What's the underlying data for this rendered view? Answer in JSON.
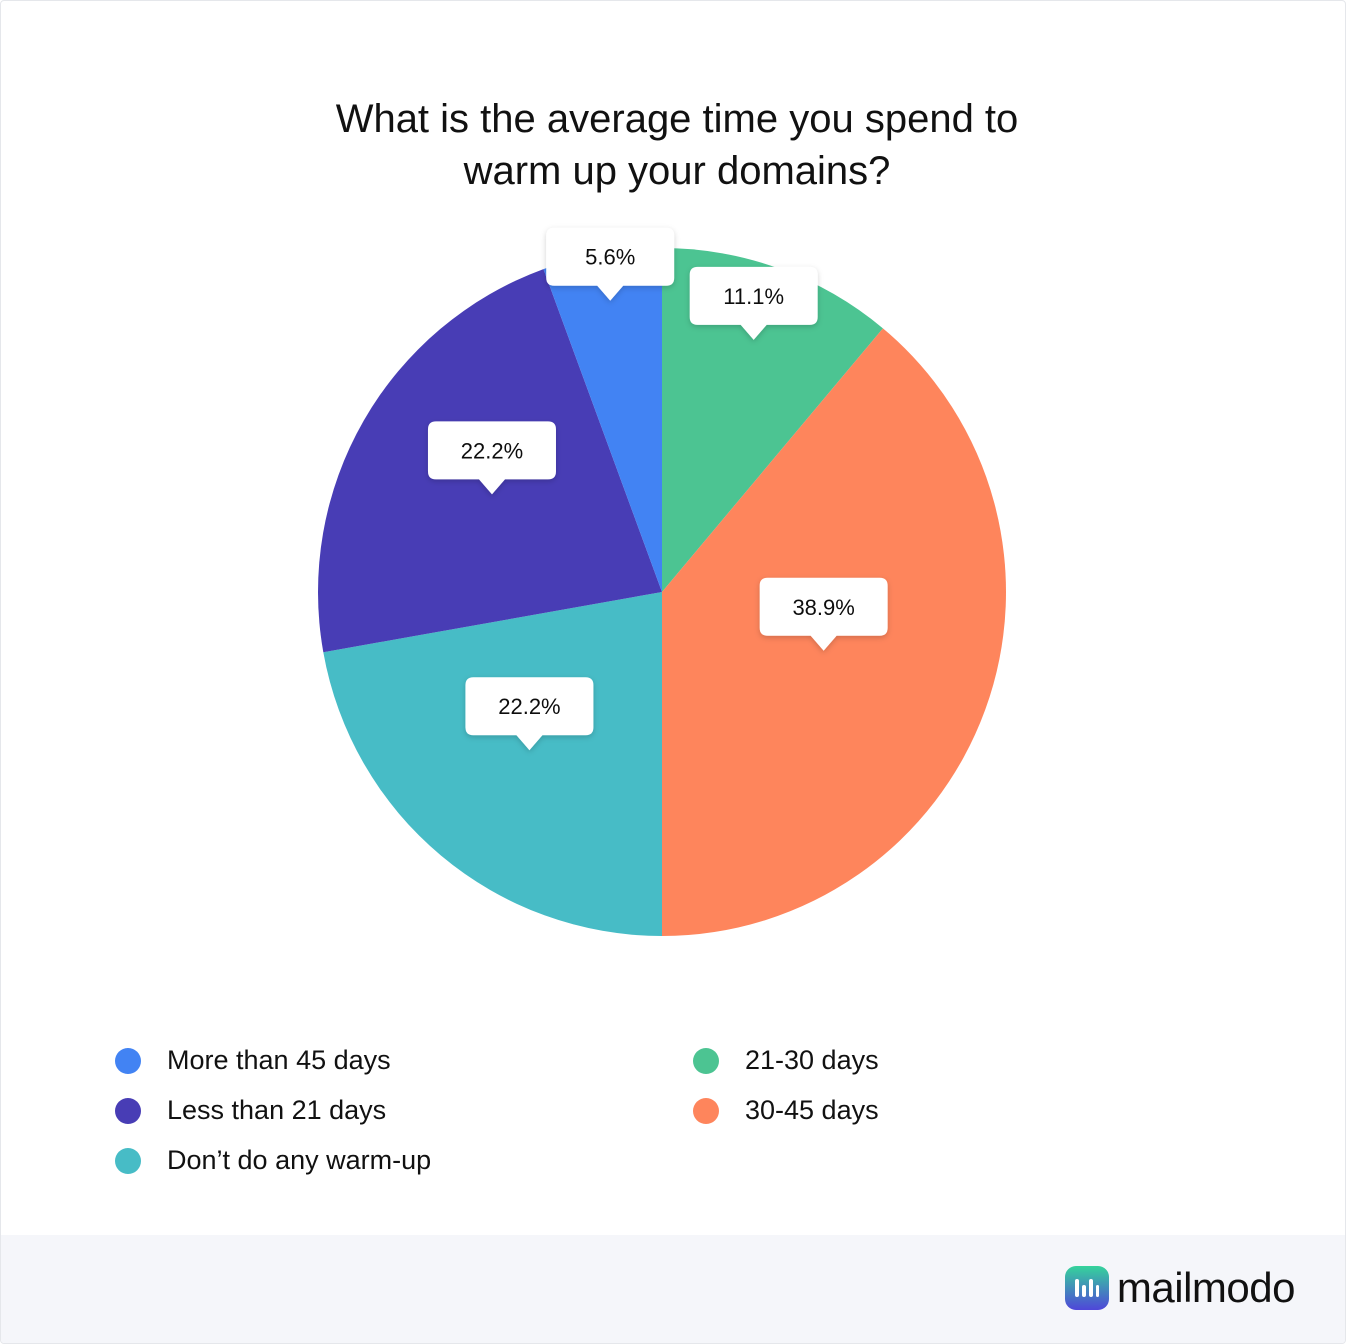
{
  "chart_data": {
    "type": "pie",
    "title": "What is the average time you spend to warm up your domains?",
    "title_lines": [
      "What is the average time you spend to",
      "warm up your domains?"
    ],
    "start_angle": "top",
    "direction": "clockwise",
    "slices": [
      {
        "label": "21-30 days",
        "value": 11.1,
        "display": "11.1%",
        "color": "#4cc492"
      },
      {
        "label": "30-45 days",
        "value": 38.9,
        "display": "38.9%",
        "color": "#fe855c"
      },
      {
        "label": "Don’t do any warm-up",
        "value": 22.2,
        "display": "22.2%",
        "color": "#47bcc6"
      },
      {
        "label": "Less than 21 days",
        "value": 22.2,
        "display": "22.2%",
        "color": "#483db5"
      },
      {
        "label": "More than 45 days",
        "value": 5.6,
        "display": "5.6%",
        "color": "#4283f3"
      }
    ],
    "legend_placement": "bottom",
    "legend": [
      {
        "label": "More than 45 days",
        "color": "#4283f3"
      },
      {
        "label": "Less than 21 days",
        "color": "#483db5"
      },
      {
        "label": "Don’t do any warm-up",
        "color": "#47bcc6"
      },
      {
        "label": "21-30 days",
        "color": "#4cc492"
      },
      {
        "label": "30-45 days",
        "color": "#fe855c"
      }
    ]
  },
  "footer": {
    "brand": "mailmodo"
  }
}
